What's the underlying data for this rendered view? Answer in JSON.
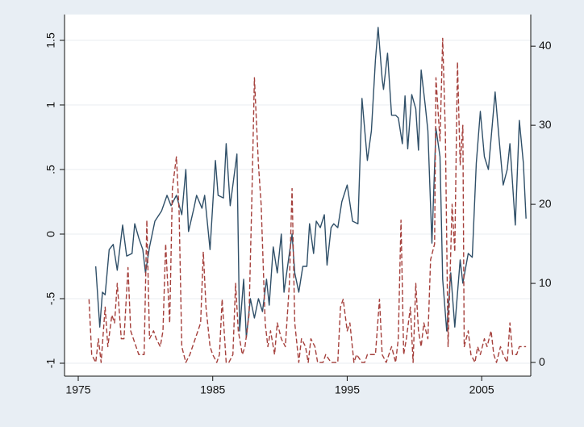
{
  "chart_data": {
    "type": "line",
    "xlim": [
      1973.98,
      2008.65
    ],
    "xticks": [
      1975,
      1985,
      1995,
      2005
    ],
    "ylim": [
      -1.1,
      1.7
    ],
    "yticks": [
      {
        "value": -1,
        "label": "-1"
      },
      {
        "value": -0.5,
        "label": "-.5"
      },
      0,
      {
        "value": 0.5,
        "label": ".5"
      },
      1,
      1.5
    ],
    "y2lim": [
      -1.73,
      44
    ],
    "y2ticks": [
      0,
      10,
      20,
      30,
      40
    ],
    "grid": true,
    "series": [
      {
        "color": "#2f4f68",
        "dash": false,
        "x": [
          1976.3,
          1976.6,
          1976.8,
          1977.0,
          1977.3,
          1977.6,
          1977.9,
          1978.3,
          1978.6,
          1979.0,
          1979.2,
          1979.5,
          1979.8,
          1980.0,
          1980.3,
          1980.7,
          1981.2,
          1981.6,
          1981.9,
          1982.3,
          1982.7,
          1983.0,
          1983.2,
          1983.6,
          1983.8,
          1984.2,
          1984.4,
          1984.8,
          1985.2,
          1985.4,
          1985.8,
          1986.0,
          1986.3,
          1986.8,
          1987.0,
          1987.3,
          1987.5,
          1987.8,
          1988.1,
          1988.4,
          1988.7,
          1989.0,
          1989.2,
          1989.5,
          1989.8,
          1990.1,
          1990.3,
          1990.7,
          1990.9,
          1991.1,
          1991.4,
          1991.7,
          1992.0,
          1992.2,
          1992.5,
          1992.7,
          1993.0,
          1993.3,
          1993.5,
          1993.8,
          1994.0,
          1994.3,
          1994.6,
          1995.0,
          1995.4,
          1995.8,
          1996.1,
          1996.5,
          1996.8,
          1997.1,
          1997.3,
          1997.6,
          1997.7,
          1998.0,
          1998.3,
          1998.6,
          1998.8,
          1999.1,
          1999.3,
          1999.5,
          1999.8,
          2000.1,
          2000.3,
          2000.5,
          2000.8,
          2001.0,
          2001.3,
          2001.6,
          2001.9,
          2002.1,
          2002.4,
          2002.7,
          2003.0,
          2003.4,
          2003.6,
          2004.0,
          2004.3,
          2004.6,
          2004.9,
          2005.2,
          2005.5,
          2006.0,
          2006.3,
          2006.6,
          2006.9,
          2007.1,
          2007.5,
          2007.8,
          2008.1,
          2008.3
        ],
        "values": [
          -0.25,
          -0.72,
          -0.45,
          -0.47,
          -0.12,
          -0.08,
          -0.28,
          0.07,
          -0.17,
          -0.15,
          0.08,
          -0.03,
          -0.12,
          -0.3,
          -0.1,
          0.1,
          0.18,
          0.3,
          0.22,
          0.3,
          0.15,
          0.5,
          0.02,
          0.2,
          0.3,
          0.2,
          0.3,
          -0.12,
          0.57,
          0.3,
          0.28,
          0.7,
          0.22,
          0.62,
          -0.75,
          -0.35,
          -0.8,
          -0.5,
          -0.65,
          -0.5,
          -0.6,
          -0.35,
          -0.55,
          -0.1,
          -0.3,
          0.0,
          -0.45,
          -0.15,
          0.0,
          -0.3,
          -0.45,
          -0.25,
          -0.25,
          0.08,
          -0.15,
          0.1,
          0.05,
          0.15,
          -0.24,
          0.05,
          0.08,
          0.05,
          0.25,
          0.38,
          0.1,
          0.08,
          1.05,
          0.57,
          0.8,
          1.35,
          1.6,
          1.2,
          1.12,
          1.4,
          0.92,
          0.92,
          0.9,
          0.7,
          1.07,
          0.66,
          1.08,
          0.97,
          0.65,
          1.27,
          1.0,
          0.8,
          -0.07,
          0.82,
          0.6,
          -0.35,
          -0.75,
          -0.3,
          -0.72,
          -0.2,
          -0.38,
          -0.15,
          -0.18,
          0.55,
          0.95,
          0.6,
          0.5,
          1.1,
          0.73,
          0.38,
          0.5,
          0.7,
          0.07,
          0.88,
          0.55,
          0.12
        ]
      },
      {
        "color": "#a5403c",
        "dash": true,
        "axis": "y2",
        "x": [
          1975.8,
          1976.0,
          1976.3,
          1976.5,
          1976.7,
          1977.0,
          1977.2,
          1977.5,
          1977.7,
          1977.9,
          1978.2,
          1978.4,
          1978.7,
          1978.9,
          1979.3,
          1979.5,
          1979.9,
          1980.1,
          1980.3,
          1980.6,
          1980.8,
          1981.1,
          1981.3,
          1981.5,
          1981.8,
          1982.0,
          1982.3,
          1982.5,
          1982.7,
          1983.0,
          1983.3,
          1983.7,
          1984.1,
          1984.3,
          1984.5,
          1984.8,
          1985.0,
          1985.3,
          1985.5,
          1985.7,
          1986.0,
          1986.2,
          1986.5,
          1986.7,
          1986.9,
          1987.2,
          1987.4,
          1987.7,
          1987.9,
          1988.1,
          1988.4,
          1988.6,
          1988.9,
          1989.1,
          1989.3,
          1989.6,
          1989.8,
          1990.1,
          1990.4,
          1990.7,
          1990.9,
          1991.1,
          1991.4,
          1991.6,
          1991.9,
          1992.1,
          1992.3,
          1992.6,
          1992.8,
          1993.2,
          1993.4,
          1993.8,
          1994.0,
          1994.3,
          1994.5,
          1994.7,
          1995.0,
          1995.2,
          1995.5,
          1995.7,
          1996.1,
          1996.3,
          1996.5,
          1996.8,
          1997.1,
          1997.4,
          1997.6,
          1997.9,
          1998.1,
          1998.3,
          1998.6,
          1998.8,
          1999.0,
          1999.2,
          1999.4,
          1999.7,
          1999.9,
          2000.1,
          2000.3,
          2000.5,
          2000.7,
          2001.0,
          2001.2,
          2001.5,
          2001.6,
          2001.9,
          2002.1,
          2002.3,
          2002.5,
          2002.8,
          2003.0,
          2003.2,
          2003.4,
          2003.6,
          2003.7,
          2004.0,
          2004.2,
          2004.5,
          2004.7,
          2004.9,
          2005.2,
          2005.4,
          2005.7,
          2005.9,
          2006.1,
          2006.4,
          2006.6,
          2006.9,
          2007.1,
          2007.3,
          2007.6,
          2007.8,
          2008.1,
          2008.3
        ],
        "values": [
          8,
          1,
          0,
          3,
          0,
          7,
          2,
          6,
          5,
          10,
          3,
          3,
          12,
          4,
          2,
          1,
          1,
          18,
          3,
          4,
          3,
          2,
          4,
          15,
          5,
          22,
          26,
          19,
          2,
          0,
          1,
          3,
          5,
          14,
          7,
          2,
          1,
          0,
          1,
          8,
          0,
          0,
          1,
          10,
          4,
          1,
          2,
          6,
          20,
          36,
          25,
          20,
          5,
          2,
          4,
          1,
          5,
          3,
          2,
          10,
          22,
          5,
          0,
          3,
          2,
          0,
          3,
          2,
          0,
          0,
          1,
          0,
          0,
          0,
          7,
          8,
          4,
          5,
          0,
          1,
          0,
          0,
          1,
          1,
          1,
          8,
          1,
          0,
          1,
          2,
          0,
          3,
          18,
          1,
          3,
          7,
          0,
          10,
          4,
          2,
          5,
          3,
          13,
          15,
          36,
          28,
          41,
          29,
          2,
          20,
          14,
          38,
          25,
          30,
          2,
          4,
          1,
          0,
          2,
          1,
          3,
          2,
          4,
          1,
          0,
          2,
          1,
          0,
          5,
          1,
          1,
          2,
          2,
          2
        ]
      }
    ]
  }
}
